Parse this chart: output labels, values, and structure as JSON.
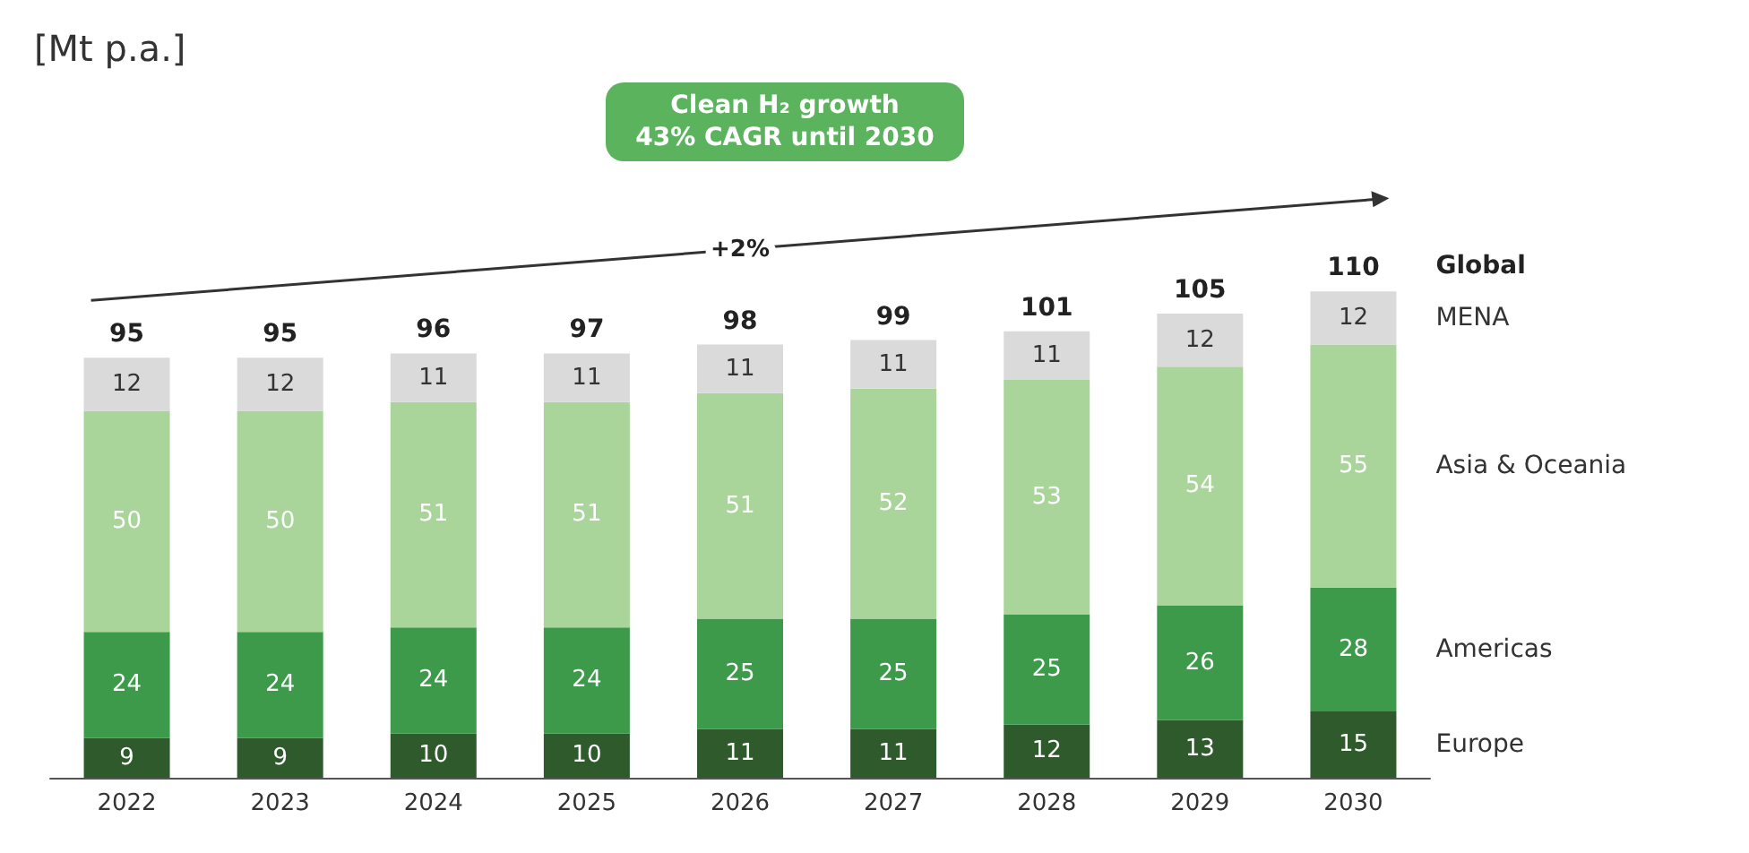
{
  "chart_data": {
    "type": "bar",
    "stacked": true,
    "categories": [
      "2022",
      "2023",
      "2024",
      "2025",
      "2026",
      "2027",
      "2028",
      "2029",
      "2030"
    ],
    "series": [
      {
        "name": "Europe",
        "color": "#2e5a2c",
        "values": [
          9,
          9,
          10,
          10,
          11,
          11,
          12,
          13,
          15
        ]
      },
      {
        "name": "Americas",
        "color": "#3c9a4a",
        "values": [
          24,
          24,
          24,
          24,
          25,
          25,
          25,
          26,
          28
        ]
      },
      {
        "name": "Asia & Oceania",
        "color": "#a9d59b",
        "values": [
          50,
          50,
          51,
          51,
          51,
          52,
          53,
          54,
          55
        ]
      },
      {
        "name": "MENA",
        "color": "#dadada",
        "values": [
          12,
          12,
          11,
          11,
          11,
          11,
          11,
          12,
          12
        ]
      }
    ],
    "data_labels": true,
    "totals": [
      "95",
      "95",
      "96",
      "97",
      "98",
      "99",
      "101",
      "105",
      "110"
    ],
    "annotations": [
      "Clean H₂ growth",
      "43% CAGR until 2030",
      "+2%",
      "Global",
      "[Mt p.a.]"
    ],
    "grid": false,
    "legend": false,
    "tick_labels": "x"
  }
}
